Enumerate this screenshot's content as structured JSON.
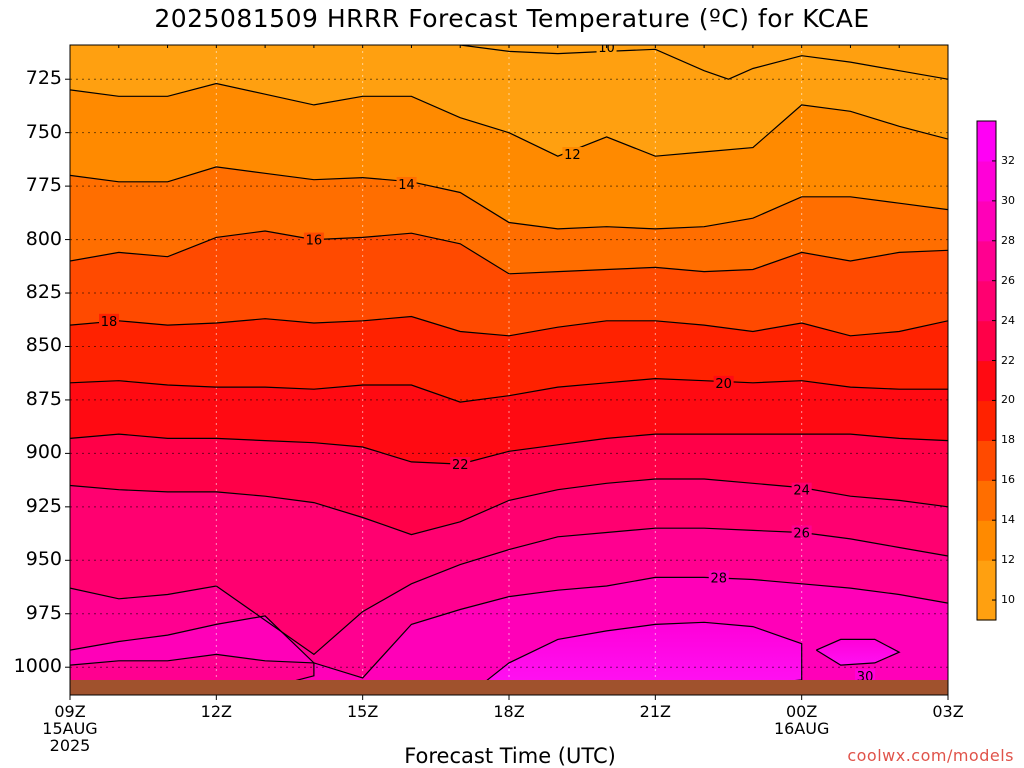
{
  "title": "2025081509 HRRR Forecast Temperature (ºC) for KCAE",
  "xlabel": "Forecast Time (UTC)",
  "credit": "coolwx.com/models",
  "chart_data": {
    "type": "heatmap",
    "title": "2025081509 HRRR Forecast Temperature (ºC) for KCAE",
    "xlabel": "Forecast Time (UTC)",
    "ylabel": "",
    "x_hours": [
      9,
      10,
      11,
      12,
      13,
      14,
      15,
      16,
      17,
      18,
      19,
      20,
      21,
      22,
      23,
      24,
      25,
      26,
      27
    ],
    "x_ticks": [
      {
        "hour": 9,
        "label": "09Z",
        "sub1": "15AUG",
        "sub2": "2025"
      },
      {
        "hour": 12,
        "label": "12Z",
        "sub1": "",
        "sub2": ""
      },
      {
        "hour": 15,
        "label": "15Z",
        "sub1": "",
        "sub2": ""
      },
      {
        "hour": 18,
        "label": "18Z",
        "sub1": "",
        "sub2": ""
      },
      {
        "hour": 21,
        "label": "21Z",
        "sub1": "",
        "sub2": ""
      },
      {
        "hour": 24,
        "label": "00Z",
        "sub1": "16AUG",
        "sub2": ""
      },
      {
        "hour": 27,
        "label": "03Z",
        "sub1": "",
        "sub2": ""
      }
    ],
    "y_ticks": [
      725,
      750,
      775,
      800,
      825,
      850,
      875,
      900,
      925,
      950,
      975,
      1000
    ],
    "ylim": [
      1013,
      709
    ],
    "xlim": [
      9,
      27
    ],
    "surface_pressure": 1007,
    "grid": true,
    "contour_interval": 2,
    "colorbar": {
      "labels": [
        10,
        12,
        14,
        16,
        18,
        20,
        22,
        24,
        26,
        28,
        30,
        32
      ],
      "range": [
        9,
        34
      ],
      "colors": [
        {
          "v": 9,
          "c": "#ffa010"
        },
        {
          "v": 12,
          "c": "#ff8a00"
        },
        {
          "v": 14,
          "c": "#ff6e00"
        },
        {
          "v": 16,
          "c": "#ff4a00"
        },
        {
          "v": 18,
          "c": "#ff2200"
        },
        {
          "v": 20,
          "c": "#ff0a12"
        },
        {
          "v": 22,
          "c": "#ff0048"
        },
        {
          "v": 24,
          "c": "#ff0070"
        },
        {
          "v": 26,
          "c": "#ff0090"
        },
        {
          "v": 28,
          "c": "#ff00b8"
        },
        {
          "v": 30,
          "c": "#ff00d8"
        },
        {
          "v": 32,
          "c": "#ff00f5"
        },
        {
          "v": 34,
          "c": "#ff30ff"
        }
      ]
    },
    "isotherms": [
      {
        "value": 10,
        "label": "10",
        "label_at": [
          20,
          710
        ],
        "pressure": [
          [
            17,
            709
          ],
          [
            18,
            712
          ],
          [
            19,
            713
          ],
          [
            20,
            712
          ],
          [
            21,
            711
          ],
          [
            22,
            721
          ],
          [
            22.5,
            725
          ],
          [
            23,
            720
          ],
          [
            24,
            714
          ],
          [
            25,
            717
          ],
          [
            26,
            721
          ],
          [
            27,
            725
          ]
        ]
      },
      {
        "value": 12,
        "label": "12",
        "label_at": [
          19.3,
          760
        ],
        "pressure": [
          [
            9,
            730
          ],
          [
            10,
            733
          ],
          [
            11,
            733
          ],
          [
            12,
            727
          ],
          [
            13,
            732
          ],
          [
            14,
            737
          ],
          [
            15,
            733
          ],
          [
            16,
            733
          ],
          [
            17,
            743
          ],
          [
            18,
            750
          ],
          [
            19,
            761
          ],
          [
            20,
            752
          ],
          [
            21,
            761
          ],
          [
            22,
            759
          ],
          [
            23,
            757
          ],
          [
            24,
            737
          ],
          [
            25,
            740
          ],
          [
            26,
            747
          ],
          [
            27,
            753
          ]
        ]
      },
      {
        "value": 14,
        "label": "14",
        "label_at": [
          15.9,
          774
        ],
        "pressure": [
          [
            9,
            770
          ],
          [
            10,
            773
          ],
          [
            11,
            773
          ],
          [
            12,
            766
          ],
          [
            13,
            769
          ],
          [
            14,
            772
          ],
          [
            15,
            771
          ],
          [
            16,
            773
          ],
          [
            17,
            778
          ],
          [
            18,
            792
          ],
          [
            19,
            795
          ],
          [
            20,
            794
          ],
          [
            21,
            795
          ],
          [
            22,
            794
          ],
          [
            23,
            790
          ],
          [
            24,
            780
          ],
          [
            25,
            780
          ],
          [
            26,
            783
          ],
          [
            27,
            786
          ]
        ]
      },
      {
        "value": 16,
        "label": "16",
        "label_at": [
          14,
          800
        ],
        "pressure": [
          [
            9,
            810
          ],
          [
            10,
            806
          ],
          [
            11,
            808
          ],
          [
            12,
            799
          ],
          [
            13,
            796
          ],
          [
            14,
            800
          ],
          [
            15,
            799
          ],
          [
            16,
            797
          ],
          [
            17,
            802
          ],
          [
            18,
            816
          ],
          [
            19,
            815
          ],
          [
            20,
            814
          ],
          [
            21,
            813
          ],
          [
            22,
            815
          ],
          [
            23,
            814
          ],
          [
            24,
            806
          ],
          [
            25,
            810
          ],
          [
            26,
            806
          ],
          [
            27,
            805
          ]
        ]
      },
      {
        "value": 18,
        "label": "18",
        "label_at": [
          9.8,
          838
        ],
        "pressure": [
          [
            9,
            840
          ],
          [
            10,
            838
          ],
          [
            11,
            840
          ],
          [
            12,
            839
          ],
          [
            13,
            837
          ],
          [
            14,
            839
          ],
          [
            15,
            838
          ],
          [
            16,
            836
          ],
          [
            17,
            843
          ],
          [
            18,
            845
          ],
          [
            19,
            841
          ],
          [
            20,
            838
          ],
          [
            21,
            838
          ],
          [
            22,
            840
          ],
          [
            23,
            843
          ],
          [
            24,
            839
          ],
          [
            25,
            845
          ],
          [
            26,
            843
          ],
          [
            27,
            838
          ]
        ]
      },
      {
        "value": 20,
        "label": "20",
        "label_at": [
          22.4,
          867
        ],
        "pressure": [
          [
            9,
            867
          ],
          [
            10,
            866
          ],
          [
            11,
            868
          ],
          [
            12,
            869
          ],
          [
            13,
            869
          ],
          [
            14,
            870
          ],
          [
            15,
            868
          ],
          [
            16,
            868
          ],
          [
            17,
            876
          ],
          [
            18,
            873
          ],
          [
            19,
            869
          ],
          [
            20,
            867
          ],
          [
            21,
            865
          ],
          [
            22,
            866
          ],
          [
            23,
            867
          ],
          [
            24,
            866
          ],
          [
            25,
            869
          ],
          [
            26,
            870
          ],
          [
            27,
            870
          ]
        ]
      },
      {
        "value": 22,
        "label": "22",
        "label_at": [
          17,
          905
        ],
        "pressure": [
          [
            9,
            893
          ],
          [
            10,
            891
          ],
          [
            11,
            893
          ],
          [
            12,
            893
          ],
          [
            13,
            894
          ],
          [
            14,
            895
          ],
          [
            15,
            897
          ],
          [
            16,
            904
          ],
          [
            17,
            905
          ],
          [
            18,
            899
          ],
          [
            19,
            896
          ],
          [
            20,
            893
          ],
          [
            21,
            891
          ],
          [
            22,
            891
          ],
          [
            23,
            891
          ],
          [
            24,
            891
          ],
          [
            25,
            891
          ],
          [
            26,
            893
          ],
          [
            27,
            894
          ]
        ]
      },
      {
        "value": 24,
        "label": "24",
        "label_at": [
          24,
          917
        ],
        "pressure": [
          [
            9,
            915
          ],
          [
            10,
            917
          ],
          [
            11,
            918
          ],
          [
            12,
            918
          ],
          [
            13,
            920
          ],
          [
            14,
            923
          ],
          [
            15,
            930
          ],
          [
            16,
            938
          ],
          [
            17,
            932
          ],
          [
            18,
            922
          ],
          [
            19,
            917
          ],
          [
            20,
            914
          ],
          [
            21,
            912
          ],
          [
            22,
            912
          ],
          [
            23,
            914
          ],
          [
            24,
            916
          ],
          [
            25,
            920
          ],
          [
            26,
            922
          ],
          [
            27,
            925
          ]
        ]
      },
      {
        "value": 26,
        "label": "26",
        "label_at": [
          24,
          937
        ],
        "pressure": [
          [
            9,
            963
          ],
          [
            10,
            968
          ],
          [
            11,
            966
          ],
          [
            12,
            962
          ],
          [
            13,
            978
          ],
          [
            14,
            994
          ],
          [
            15,
            974
          ],
          [
            16,
            961
          ],
          [
            17,
            952
          ],
          [
            18,
            945
          ],
          [
            19,
            939
          ],
          [
            20,
            937
          ],
          [
            21,
            935
          ],
          [
            22,
            935
          ],
          [
            23,
            936
          ],
          [
            24,
            937
          ],
          [
            25,
            940
          ],
          [
            26,
            944
          ],
          [
            27,
            948
          ]
        ]
      },
      {
        "value": 28,
        "label": "28",
        "label_at": [
          22.3,
          958
        ],
        "pressure": [
          [
            9,
            992
          ],
          [
            10,
            988
          ],
          [
            11,
            985
          ],
          [
            12,
            980
          ],
          [
            13,
            976
          ],
          [
            14,
            998
          ],
          [
            15,
            1005
          ],
          [
            16,
            980
          ],
          [
            17,
            973
          ],
          [
            18,
            967
          ],
          [
            19,
            964
          ],
          [
            20,
            962
          ],
          [
            21,
            958
          ],
          [
            22,
            958
          ],
          [
            23,
            959
          ],
          [
            24,
            961
          ],
          [
            25,
            963
          ],
          [
            26,
            966
          ],
          [
            27,
            970
          ]
        ]
      }
    ],
    "closed_contours": [
      {
        "value": 26,
        "pressure": [
          [
            9,
            999
          ],
          [
            10,
            997
          ],
          [
            11,
            997
          ],
          [
            12,
            994
          ],
          [
            13,
            997
          ],
          [
            14,
            998
          ],
          [
            14,
            1004
          ],
          [
            13.5,
            1007
          ],
          [
            9,
            1007
          ]
        ]
      },
      {
        "value": 30,
        "pressure": [
          [
            17.5,
            1007
          ],
          [
            18,
            998
          ],
          [
            19,
            987
          ],
          [
            20,
            983
          ],
          [
            21,
            980
          ],
          [
            22,
            979
          ],
          [
            23,
            981
          ],
          [
            24,
            989
          ],
          [
            24,
            1006
          ],
          [
            23.5,
            1007
          ]
        ]
      },
      {
        "value": 30,
        "label": "30",
        "label_at": [
          25.3,
          1004
        ],
        "pressure": [
          [
            24.3,
            992
          ],
          [
            24.8,
            987
          ],
          [
            25.5,
            987
          ],
          [
            26,
            993
          ],
          [
            25.5,
            998
          ],
          [
            24.8,
            999
          ]
        ]
      }
    ]
  }
}
